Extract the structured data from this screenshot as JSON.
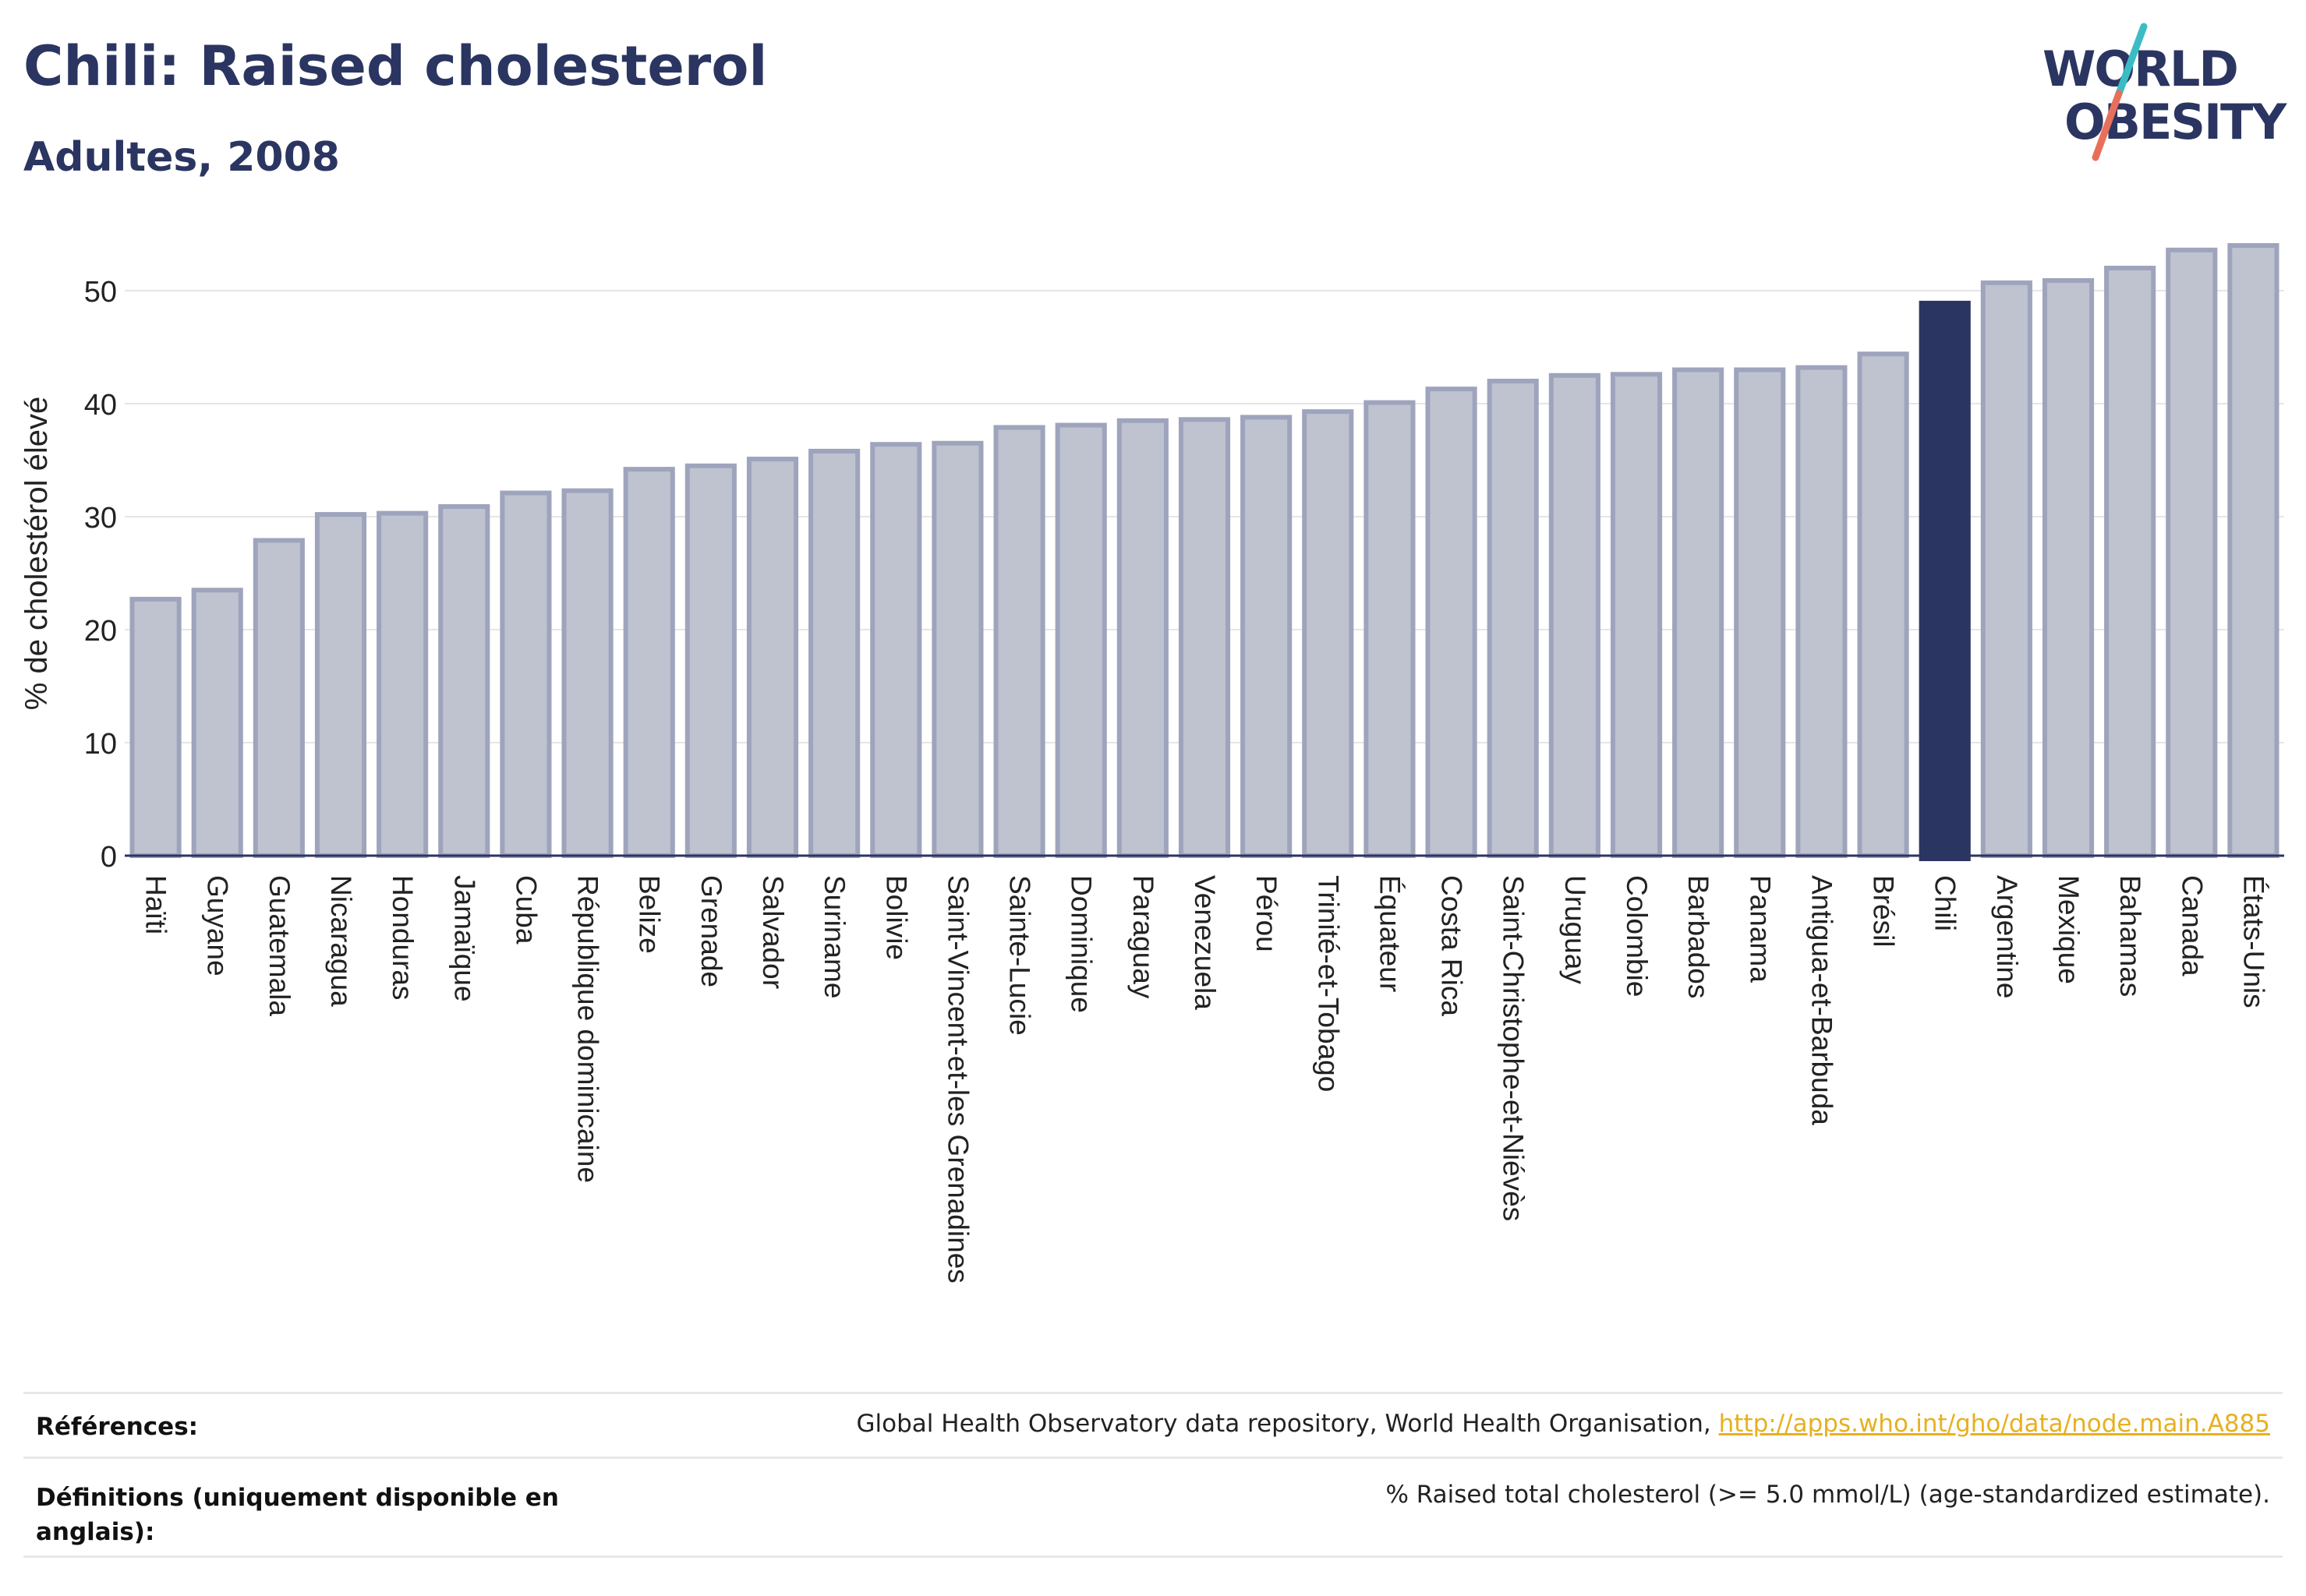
{
  "header": {
    "title": "Chili: Raised cholesterol",
    "subtitle": "Adultes, 2008"
  },
  "logo": {
    "line1": "WORLD",
    "line2": "OBESITY",
    "colors": {
      "text": "#2b3561",
      "slash_teal": "#3bbcc4",
      "slash_coral": "#e8705b"
    }
  },
  "colors": {
    "bar_fill": "#bfc2cf",
    "bar_stroke": "#9fa4bd",
    "highlight": "#2b3561",
    "grid": "#e6e6e6",
    "axis": "#2b3561",
    "link": "#e6b020"
  },
  "chart_data": {
    "type": "bar",
    "title": "Chili: Raised cholesterol",
    "subtitle": "Adultes, 2008",
    "xlabel": "",
    "ylabel": "% de cholestérol élevé",
    "ylim": [
      0,
      55
    ],
    "yticks": [
      0,
      10,
      20,
      30,
      40,
      50
    ],
    "grid": true,
    "highlight": "Chili",
    "categories": [
      "Haïti",
      "Guyane",
      "Guatemala",
      "Nicaragua",
      "Honduras",
      "Jamaïque",
      "Cuba",
      "République dominicaine",
      "Belize",
      "Grenade",
      "Salvador",
      "Suriname",
      "Bolivie",
      "Saint-Vincent-et-les Grenadines",
      "Sainte-Lucie",
      "Dominique",
      "Paraguay",
      "Venezuela",
      "Pérou",
      "Trinité-et-Tobago",
      "Équateur",
      "Costa Rica",
      "Saint-Christophe-et-Niévès",
      "Uruguay",
      "Colombie",
      "Barbados",
      "Panama",
      "Antigua-et-Barbuda",
      "Brésil",
      "Chili",
      "Argentine",
      "Mexique",
      "Bahamas",
      "Canada",
      "États-Unis"
    ],
    "values": [
      22.7,
      23.5,
      27.9,
      30.2,
      30.3,
      30.9,
      32.1,
      32.3,
      34.2,
      34.5,
      35.1,
      35.8,
      36.4,
      36.5,
      37.9,
      38.1,
      38.5,
      38.6,
      38.8,
      39.3,
      40.1,
      41.3,
      42.0,
      42.5,
      42.6,
      43.0,
      43.0,
      43.2,
      44.4,
      48.9,
      50.7,
      50.9,
      52.0,
      53.6,
      54.0
    ]
  },
  "footer": {
    "references_label": "Références:",
    "references_text": "Global Health Observatory data repository, World Health Organisation,",
    "references_link": "http://apps.who.int/gho/data/node.main.A885",
    "definitions_label": "Définitions (uniquement disponible en anglais):",
    "definitions_text": "% Raised total cholesterol (>= 5.0 mmol/L) (age-standardized estimate)."
  }
}
